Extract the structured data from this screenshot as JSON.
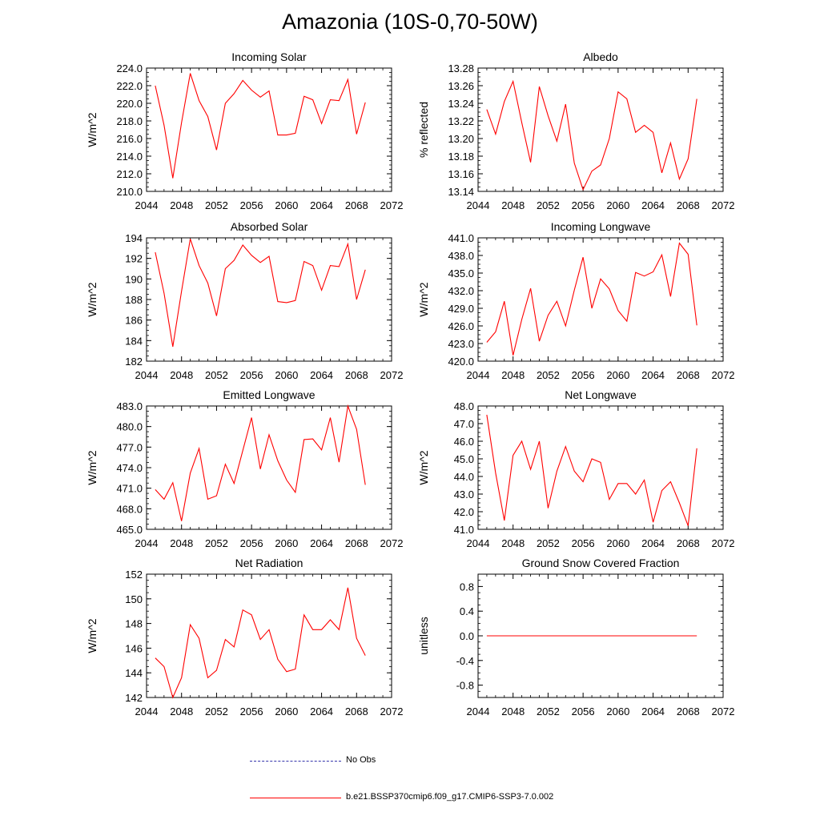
{
  "title": "Amazonia (10S-0,70-50W)",
  "legend": [
    {
      "label": "No Obs",
      "color": "#3333aa",
      "style": "dashed"
    },
    {
      "label": "b.e21.BSSP370cmip6.f09_g17.CMIP6-SSP3-7.0.002",
      "color": "#ff0000",
      "style": "solid"
    }
  ],
  "chart_data": [
    {
      "type": "line",
      "title": "Incoming Solar",
      "ylabel": "W/m^2",
      "xlim": [
        2044,
        2072
      ],
      "xticks": [
        2044,
        2048,
        2052,
        2056,
        2060,
        2064,
        2068,
        2072
      ],
      "ylim": [
        210,
        224
      ],
      "yticks": [
        "210.0",
        "212.0",
        "214.0",
        "216.0",
        "218.0",
        "220.0",
        "222.0",
        "224.0"
      ],
      "yminor": 0.5,
      "x": [
        2045,
        2046,
        2047,
        2048,
        2049,
        2050,
        2051,
        2052,
        2053,
        2054,
        2055,
        2056,
        2057,
        2058,
        2059,
        2060,
        2061,
        2062,
        2063,
        2064,
        2065,
        2066,
        2067,
        2068,
        2069
      ],
      "series": [
        {
          "name": "b.e21.BSSP370cmip6.f09_g17.CMIP6-SSP3-7.0.002",
          "color": "#ff0000",
          "values": [
            222.0,
            217.5,
            211.5,
            217.8,
            223.4,
            220.3,
            218.5,
            214.7,
            220.0,
            221.1,
            222.6,
            221.5,
            220.7,
            221.4,
            216.4,
            216.4,
            216.6,
            220.8,
            220.4,
            217.7,
            220.4,
            220.3,
            222.7,
            216.5,
            220.1
          ]
        }
      ]
    },
    {
      "type": "line",
      "title": "Albedo",
      "ylabel": "% reflected",
      "xlim": [
        2044,
        2072
      ],
      "xticks": [
        2044,
        2048,
        2052,
        2056,
        2060,
        2064,
        2068,
        2072
      ],
      "ylim": [
        13.14,
        13.28
      ],
      "yticks": [
        "13.14",
        "13.16",
        "13.18",
        "13.20",
        "13.22",
        "13.24",
        "13.26",
        "13.28"
      ],
      "yminor": 0.005,
      "x": [
        2045,
        2046,
        2047,
        2048,
        2049,
        2050,
        2051,
        2052,
        2053,
        2054,
        2055,
        2056,
        2057,
        2058,
        2059,
        2060,
        2061,
        2062,
        2063,
        2064,
        2065,
        2066,
        2067,
        2068,
        2069
      ],
      "series": [
        {
          "name": "b.e21.BSSP370cmip6.f09_g17.CMIP6-SSP3-7.0.002",
          "color": "#ff0000",
          "values": [
            13.233,
            13.205,
            13.242,
            13.265,
            13.218,
            13.173,
            13.259,
            13.226,
            13.197,
            13.239,
            13.172,
            13.142,
            13.163,
            13.17,
            13.2,
            13.253,
            13.245,
            13.207,
            13.215,
            13.207,
            13.161,
            13.195,
            13.154,
            13.177,
            13.245
          ]
        }
      ]
    },
    {
      "type": "line",
      "title": "Absorbed Solar",
      "ylabel": "W/m^2",
      "xlim": [
        2044,
        2072
      ],
      "xticks": [
        2044,
        2048,
        2052,
        2056,
        2060,
        2064,
        2068,
        2072
      ],
      "ylim": [
        182,
        194
      ],
      "yticks": [
        "182",
        "184",
        "186",
        "188",
        "190",
        "192",
        "194"
      ],
      "yminor": 0.5,
      "x": [
        2045,
        2046,
        2047,
        2048,
        2049,
        2050,
        2051,
        2052,
        2053,
        2054,
        2055,
        2056,
        2057,
        2058,
        2059,
        2060,
        2061,
        2062,
        2063,
        2064,
        2065,
        2066,
        2067,
        2068,
        2069
      ],
      "series": [
        {
          "name": "b.e21.BSSP370cmip6.f09_g17.CMIP6-SSP3-7.0.002",
          "color": "#ff0000",
          "values": [
            192.6,
            188.6,
            183.4,
            188.8,
            193.9,
            191.3,
            189.6,
            186.4,
            191.0,
            191.8,
            193.3,
            192.3,
            191.6,
            192.2,
            187.8,
            187.7,
            187.9,
            191.7,
            191.3,
            188.9,
            191.3,
            191.2,
            193.4,
            188.0,
            190.9
          ]
        }
      ]
    },
    {
      "type": "line",
      "title": "Incoming Longwave",
      "ylabel": "W/m^2",
      "xlim": [
        2044,
        2072
      ],
      "xticks": [
        2044,
        2048,
        2052,
        2056,
        2060,
        2064,
        2068,
        2072
      ],
      "ylim": [
        420,
        441
      ],
      "yticks": [
        "420.0",
        "423.0",
        "426.0",
        "429.0",
        "432.0",
        "435.0",
        "438.0",
        "441.0"
      ],
      "yminor": 0.75,
      "x": [
        2045,
        2046,
        2047,
        2048,
        2049,
        2050,
        2051,
        2052,
        2053,
        2054,
        2055,
        2056,
        2057,
        2058,
        2059,
        2060,
        2061,
        2062,
        2063,
        2064,
        2065,
        2066,
        2067,
        2068,
        2069
      ],
      "series": [
        {
          "name": "b.e21.BSSP370cmip6.f09_g17.CMIP6-SSP3-7.0.002",
          "color": "#ff0000",
          "values": [
            423.2,
            425.0,
            430.2,
            421.0,
            427.1,
            432.4,
            423.4,
            427.8,
            430.2,
            426.0,
            432.1,
            437.7,
            429.0,
            434.0,
            432.3,
            428.6,
            426.8,
            435.1,
            434.5,
            435.2,
            438.1,
            431.0,
            440.1,
            438.2,
            426.1
          ]
        }
      ]
    },
    {
      "type": "line",
      "title": "Emitted Longwave",
      "ylabel": "W/m^2",
      "xlim": [
        2044,
        2072
      ],
      "xticks": [
        2044,
        2048,
        2052,
        2056,
        2060,
        2064,
        2068,
        2072
      ],
      "ylim": [
        465,
        483
      ],
      "yticks": [
        "465.0",
        "468.0",
        "471.0",
        "474.0",
        "477.0",
        "480.0",
        "483.0"
      ],
      "yminor": 0.75,
      "x": [
        2045,
        2046,
        2047,
        2048,
        2049,
        2050,
        2051,
        2052,
        2053,
        2054,
        2055,
        2056,
        2057,
        2058,
        2059,
        2060,
        2061,
        2062,
        2063,
        2064,
        2065,
        2066,
        2067,
        2068,
        2069
      ],
      "series": [
        {
          "name": "b.e21.BSSP370cmip6.f09_g17.CMIP6-SSP3-7.0.002",
          "color": "#ff0000",
          "values": [
            470.8,
            469.4,
            471.8,
            466.2,
            473.2,
            476.8,
            469.4,
            469.9,
            474.5,
            471.7,
            476.5,
            481.3,
            473.8,
            478.8,
            475.0,
            472.2,
            470.4,
            478.1,
            478.2,
            476.6,
            481.3,
            474.8,
            483.0,
            479.6,
            471.5
          ]
        }
      ]
    },
    {
      "type": "line",
      "title": "Net Longwave",
      "ylabel": "W/m^2",
      "xlim": [
        2044,
        2072
      ],
      "xticks": [
        2044,
        2048,
        2052,
        2056,
        2060,
        2064,
        2068,
        2072
      ],
      "ylim": [
        41,
        48
      ],
      "yticks": [
        "41.0",
        "42.0",
        "43.0",
        "44.0",
        "45.0",
        "46.0",
        "47.0",
        "48.0"
      ],
      "yminor": 0.25,
      "x": [
        2045,
        2046,
        2047,
        2048,
        2049,
        2050,
        2051,
        2052,
        2053,
        2054,
        2055,
        2056,
        2057,
        2058,
        2059,
        2060,
        2061,
        2062,
        2063,
        2064,
        2065,
        2066,
        2067,
        2068,
        2069
      ],
      "series": [
        {
          "name": "b.e21.BSSP370cmip6.f09_g17.CMIP6-SSP3-7.0.002",
          "color": "#ff0000",
          "values": [
            47.5,
            44.2,
            41.5,
            45.2,
            46.0,
            44.4,
            46.0,
            42.2,
            44.3,
            45.7,
            44.3,
            43.7,
            45.0,
            44.8,
            42.7,
            43.6,
            43.6,
            43.0,
            43.8,
            41.4,
            43.2,
            43.7,
            42.5,
            41.2,
            45.6
          ]
        }
      ]
    },
    {
      "type": "line",
      "title": "Net Radiation",
      "ylabel": "W/m^2",
      "xlim": [
        2044,
        2072
      ],
      "xticks": [
        2044,
        2048,
        2052,
        2056,
        2060,
        2064,
        2068,
        2072
      ],
      "ylim": [
        142,
        152
      ],
      "yticks": [
        "142",
        "144",
        "146",
        "148",
        "150",
        "152"
      ],
      "yminor": 0.5,
      "x": [
        2045,
        2046,
        2047,
        2048,
        2049,
        2050,
        2051,
        2052,
        2053,
        2054,
        2055,
        2056,
        2057,
        2058,
        2059,
        2060,
        2061,
        2062,
        2063,
        2064,
        2065,
        2066,
        2067,
        2068,
        2069
      ],
      "series": [
        {
          "name": "b.e21.BSSP370cmip6.f09_g17.CMIP6-SSP3-7.0.002",
          "color": "#ff0000",
          "values": [
            145.2,
            144.5,
            142.0,
            143.6,
            147.9,
            146.8,
            143.6,
            144.2,
            146.7,
            146.1,
            149.1,
            148.7,
            146.7,
            147.5,
            145.1,
            144.1,
            144.3,
            148.7,
            147.5,
            147.5,
            148.3,
            147.5,
            150.9,
            146.8,
            145.4
          ]
        }
      ]
    },
    {
      "type": "line",
      "title": "Ground Snow Covered Fraction",
      "ylabel": "unitless",
      "xlim": [
        2044,
        2072
      ],
      "xticks": [
        2044,
        2048,
        2052,
        2056,
        2060,
        2064,
        2068,
        2072
      ],
      "ylim": [
        -1.0,
        1.0
      ],
      "yticks": [
        "-0.8",
        "-0.4",
        "0.0",
        "0.4",
        "0.8"
      ],
      "yminor": 0.1,
      "x": [
        2045,
        2046,
        2047,
        2048,
        2049,
        2050,
        2051,
        2052,
        2053,
        2054,
        2055,
        2056,
        2057,
        2058,
        2059,
        2060,
        2061,
        2062,
        2063,
        2064,
        2065,
        2066,
        2067,
        2068,
        2069
      ],
      "series": [
        {
          "name": "b.e21.BSSP370cmip6.f09_g17.CMIP6-SSP3-7.0.002",
          "color": "#ff0000",
          "values": [
            0.0,
            0.0,
            0.0,
            0.0,
            0.0,
            0.0,
            0.0,
            0.0,
            0.0,
            0.0,
            0.0,
            0.0,
            0.0,
            0.0,
            0.0,
            0.0,
            0.0,
            0.0,
            0.0,
            0.0,
            0.0,
            0.0,
            0.0,
            0.0,
            0.0
          ]
        }
      ]
    }
  ]
}
